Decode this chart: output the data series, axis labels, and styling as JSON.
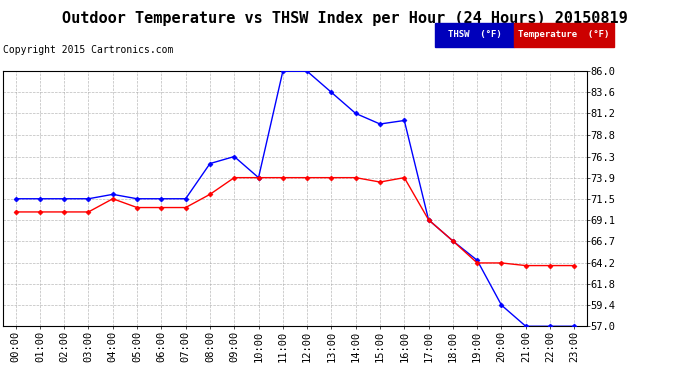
{
  "title": "Outdoor Temperature vs THSW Index per Hour (24 Hours) 20150819",
  "copyright": "Copyright 2015 Cartronics.com",
  "hours": [
    "00:00",
    "01:00",
    "02:00",
    "03:00",
    "04:00",
    "05:00",
    "06:00",
    "07:00",
    "08:00",
    "09:00",
    "10:00",
    "11:00",
    "12:00",
    "13:00",
    "14:00",
    "15:00",
    "16:00",
    "17:00",
    "18:00",
    "19:00",
    "20:00",
    "21:00",
    "22:00",
    "23:00"
  ],
  "thsw": [
    71.5,
    71.5,
    71.5,
    71.5,
    72.0,
    71.5,
    71.5,
    71.5,
    75.5,
    76.3,
    73.9,
    86.0,
    86.0,
    83.6,
    81.2,
    80.0,
    80.4,
    69.1,
    66.7,
    64.5,
    59.4,
    57.0,
    57.0,
    57.0
  ],
  "temperature": [
    70.0,
    70.0,
    70.0,
    70.0,
    71.5,
    70.5,
    70.5,
    70.5,
    72.0,
    73.9,
    73.9,
    73.9,
    73.9,
    73.9,
    73.9,
    73.4,
    73.9,
    69.1,
    66.7,
    64.2,
    64.2,
    63.9,
    63.9,
    63.9
  ],
  "ylim": [
    57.0,
    86.0
  ],
  "ytick_labels": [
    "57.0",
    "59.4",
    "61.8",
    "64.2",
    "66.7",
    "69.1",
    "71.5",
    "73.9",
    "76.3",
    "78.8",
    "81.2",
    "83.6",
    "86.0"
  ],
  "ytick_vals": [
    57.0,
    59.4,
    61.8,
    64.2,
    66.7,
    69.1,
    71.5,
    73.9,
    76.3,
    78.8,
    81.2,
    83.6,
    86.0
  ],
  "thsw_color": "#0000ff",
  "temp_color": "#ff0000",
  "background_color": "#ffffff",
  "grid_color": "#aaaaaa",
  "legend_thsw_bg": "#0000bb",
  "legend_temp_bg": "#cc0000",
  "title_fontsize": 11,
  "copyright_fontsize": 7,
  "axis_fontsize": 7.5,
  "marker": "D",
  "marker_size": 2.5,
  "legend_thsw_label": "THSW  (°F)",
  "legend_temp_label": "Temperature  (°F)"
}
